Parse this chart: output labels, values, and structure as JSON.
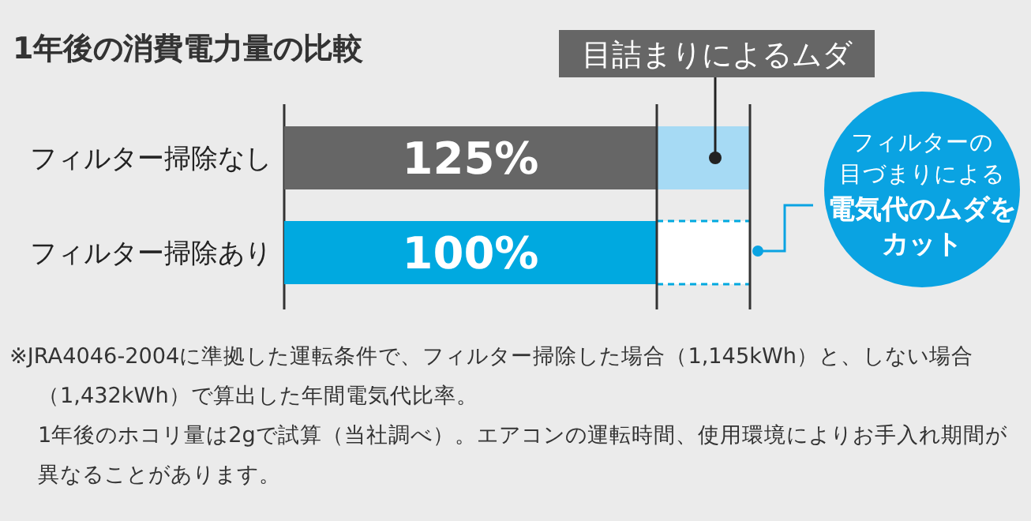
{
  "chart_data": {
    "type": "bar",
    "orientation": "horizontal",
    "title": "1年後の消費電力量の比較",
    "categories": [
      "フィルター掃除なし",
      "フィルター掃除あり"
    ],
    "series": [
      {
        "colors": [
          "#666666",
          "#00a9e0"
        ],
        "values": [
          125,
          100
        ],
        "value_labels": [
          "125%",
          "100%"
        ]
      }
    ],
    "bands": [
      {
        "axis": "x",
        "from": 100,
        "to": 125
      }
    ],
    "ref_lines": [
      {
        "axis": "x",
        "value": 100,
        "color": "#333333"
      },
      {
        "axis": "x",
        "value": 125,
        "color": "#333333"
      }
    ],
    "annotations": [
      "目詰まりによるムダ",
      "フィルターの",
      "目づまりによる",
      "電気代のムダを",
      "カット",
      "※JRA4046-2004に準拠した運転条件で、フィルター掃除した場合（1,145kWh）と、しない場合（1,432kWh）で算出した年間電気代比率。",
      "1年後のホコリ量は2gで試算（当社調べ）。エアコンの運転時間、使用環境によりお手入れ期間が異なることがあります。"
    ]
  }
}
